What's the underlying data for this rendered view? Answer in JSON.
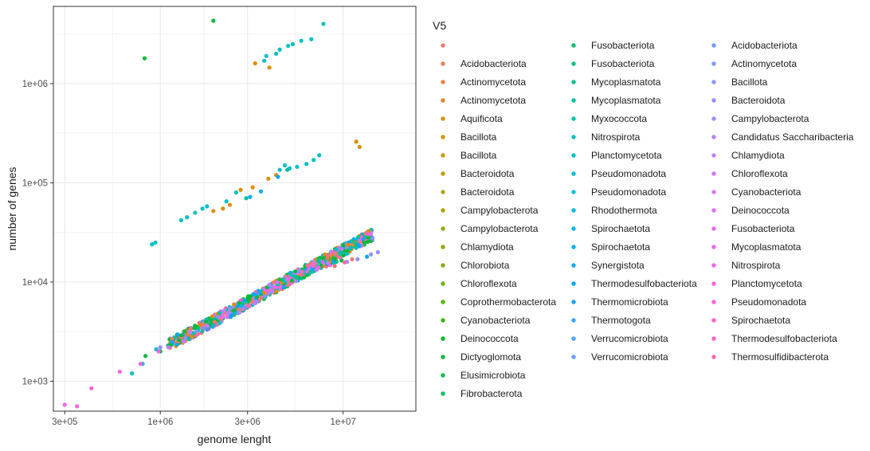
{
  "chart_data": {
    "type": "scatter",
    "xlabel": "genome lenght",
    "ylabel": "number of genes",
    "x_scale": "log10",
    "y_scale": "log10",
    "xlim": [
      260000,
      25000000
    ],
    "ylim": [
      500,
      6000000
    ],
    "x_ticks": [
      {
        "value": 300000,
        "label": "3e+05"
      },
      {
        "value": 1000000,
        "label": "1e+06"
      },
      {
        "value": 3000000,
        "label": "3e+06"
      },
      {
        "value": 10000000,
        "label": "1e+07"
      }
    ],
    "y_ticks": [
      {
        "value": 1000,
        "label": "1e+03"
      },
      {
        "value": 10000,
        "label": "1e+04"
      },
      {
        "value": 100000,
        "label": "1e+05"
      },
      {
        "value": 1000000,
        "label": "1e+06"
      }
    ],
    "grid": true,
    "legend_title": "V5",
    "legend_position": "right",
    "legend_entries": [
      {
        "label": "",
        "color": "#F8766D"
      },
      {
        "label": "Acidobacteriota",
        "color": "#F47A5A"
      },
      {
        "label": "Actinomycetota",
        "color": "#EE8044"
      },
      {
        "label": "Actinomycetota",
        "color": "#E6862A"
      },
      {
        "label": "Aquificota",
        "color": "#DD8D00"
      },
      {
        "label": "Bacillota",
        "color": "#D49200"
      },
      {
        "label": "Bacillota",
        "color": "#C99800"
      },
      {
        "label": "Bacteroidota",
        "color": "#BE9C00"
      },
      {
        "label": "Bacteroidota",
        "color": "#B3A000"
      },
      {
        "label": "Campylobacterota",
        "color": "#A7A400"
      },
      {
        "label": "Campylobacterota",
        "color": "#9AA800"
      },
      {
        "label": "Chlamydiota",
        "color": "#8CAB00"
      },
      {
        "label": "Chlorobiota",
        "color": "#7DAE00"
      },
      {
        "label": "Chloroflexota",
        "color": "#6BB100"
      },
      {
        "label": "Coprothermobacterota",
        "color": "#55B400"
      },
      {
        "label": "Cyanobacteriota",
        "color": "#39B600"
      },
      {
        "label": "Deinococcota",
        "color": "#00B81F"
      },
      {
        "label": "Dictyoglomota",
        "color": "#00BA38"
      },
      {
        "label": "Elusimicrobiota",
        "color": "#00BB4E"
      },
      {
        "label": "Fibrobacterota",
        "color": "#00BC62"
      },
      {
        "label": "Fusobacteriota",
        "color": "#00BE6C"
      },
      {
        "label": "Fusobacteriota",
        "color": "#00BF7D"
      },
      {
        "label": "Mycoplasmatota",
        "color": "#00C08D"
      },
      {
        "label": "Mycoplasmatota",
        "color": "#00C19C"
      },
      {
        "label": "Myxococcota",
        "color": "#00C1AA"
      },
      {
        "label": "Nitrospirota",
        "color": "#00C0B8"
      },
      {
        "label": "Planctomycetota",
        "color": "#00BFC4"
      },
      {
        "label": "Pseudomonadota",
        "color": "#00BDD0"
      },
      {
        "label": "Pseudomonadota",
        "color": "#00BBDB"
      },
      {
        "label": "Rhodothermota",
        "color": "#00B8E5"
      },
      {
        "label": "Spirochaetota",
        "color": "#00B4EF"
      },
      {
        "label": "Spirochaetota",
        "color": "#00B0F6"
      },
      {
        "label": "Synergistota",
        "color": "#00ABFD"
      },
      {
        "label": "Thermodesulfobacteriota",
        "color": "#00A5FF"
      },
      {
        "label": "Thermomicrobiota",
        "color": "#199FFF"
      },
      {
        "label": "Thermotogota",
        "color": "#35A2FF"
      },
      {
        "label": "Verrucomicrobiota",
        "color": "#4B9FFF"
      },
      {
        "label": "Verrucomicrobiota",
        "color": "#619CFF"
      },
      {
        "label": "Acidobacteriota",
        "color": "#6E9BFF"
      },
      {
        "label": "Actinomycetota",
        "color": "#7E97FF"
      },
      {
        "label": "Bacillota",
        "color": "#8B93FF"
      },
      {
        "label": "Bacteroidota",
        "color": "#9590FF"
      },
      {
        "label": "Campylobacterota",
        "color": "#A58AFF"
      },
      {
        "label": "Candidatus Saccharibacteria",
        "color": "#B385FF"
      },
      {
        "label": "Chlamydiota",
        "color": "#C17FFF"
      },
      {
        "label": "Chloroflexota",
        "color": "#CD79FF"
      },
      {
        "label": "Cyanobacteriota",
        "color": "#D774FD"
      },
      {
        "label": "Deinococcota",
        "color": "#E16EF7"
      },
      {
        "label": "Fusobacteriota",
        "color": "#E96AF0"
      },
      {
        "label": "Mycoplasmatota",
        "color": "#F066E8"
      },
      {
        "label": "Nitrospirota",
        "color": "#F564E3"
      },
      {
        "label": "Planctomycetota",
        "color": "#F962DD"
      },
      {
        "label": "Pseudomonadota",
        "color": "#FC61D5"
      },
      {
        "label": "Spirochaetota",
        "color": "#FE62CB"
      },
      {
        "label": "Thermodesulfobacteriota",
        "color": "#FF64C0"
      },
      {
        "label": "Thermosulfidibacterota",
        "color": "#FF67B4"
      },
      {
        "label": "Thermotogota",
        "color": "#FF6AA7"
      },
      {
        "label": "Verrucomicrobiota",
        "color": "#FF6C91"
      }
    ],
    "series": [
      {
        "color": "#00BFC4",
        "points": [
          [
            7800000,
            4000000
          ],
          [
            6700000,
            2800000
          ],
          [
            5900000,
            2700000
          ],
          [
            5300000,
            2500000
          ],
          [
            5000000,
            2400000
          ],
          [
            4500000,
            2200000
          ],
          [
            4300000,
            2000000
          ],
          [
            3700000,
            1700000
          ],
          [
            3800000,
            1900000
          ],
          [
            7400000,
            190000
          ],
          [
            6900000,
            170000
          ],
          [
            6300000,
            155000
          ],
          [
            5600000,
            145000
          ],
          [
            5100000,
            140000
          ],
          [
            4800000,
            150000
          ],
          [
            4500000,
            135000
          ],
          [
            1700000,
            55000
          ],
          [
            1550000,
            50000
          ],
          [
            1800000,
            58000
          ],
          [
            2300000,
            65000
          ],
          [
            2600000,
            80000
          ],
          [
            900000,
            24000
          ],
          [
            940000,
            25000
          ],
          [
            1300000,
            42000
          ],
          [
            1400000,
            45000
          ],
          [
            950000,
            2100
          ],
          [
            800000,
            1500
          ],
          [
            700000,
            1200
          ],
          [
            1250000,
            2500
          ],
          [
            1500000,
            3000
          ],
          [
            1850000,
            3600
          ],
          [
            2500000,
            5200
          ],
          [
            3200000,
            6500
          ],
          [
            4100000,
            8000
          ],
          [
            5400000,
            11000
          ],
          [
            6500000,
            13000
          ],
          [
            7800000,
            14500
          ],
          [
            8900000,
            15500
          ]
        ]
      },
      {
        "color": "#DD8D00",
        "points": [
          [
            3300000,
            1600000
          ],
          [
            3950000,
            1450000
          ],
          [
            11800000,
            260000
          ],
          [
            12300000,
            230000
          ],
          [
            3200000,
            90000
          ],
          [
            3900000,
            110000
          ],
          [
            4300000,
            120000
          ],
          [
            2400000,
            60000
          ],
          [
            2200000,
            55000
          ],
          [
            1950000,
            52000
          ],
          [
            2750000,
            85000
          ],
          [
            4200000,
            8500
          ],
          [
            3700000,
            7500
          ]
        ]
      },
      {
        "color": "#00BA38",
        "points": [
          [
            820000,
            1800000
          ],
          [
            1950000,
            4300000
          ]
        ]
      },
      {
        "color": "#00BA38",
        "points": [
          [
            830000,
            1800
          ],
          [
            1000000,
            2000
          ],
          [
            1600000,
            3200
          ],
          [
            2200000,
            4300
          ],
          [
            3000000,
            6000
          ],
          [
            4700000,
            9500
          ],
          [
            6100000,
            12000
          ],
          [
            9800000,
            16500
          ]
        ]
      },
      {
        "color": "#00A5FF",
        "points": [
          [
            3550000,
            82000
          ],
          [
            4400000,
            115000
          ],
          [
            3100000,
            72000
          ],
          [
            2700000,
            5000
          ],
          [
            3500000,
            6800
          ],
          [
            5200000,
            10500
          ],
          [
            7100000,
            13500
          ],
          [
            13500000,
            18000
          ]
        ]
      },
      {
        "color": "#00C19C",
        "points": [
          [
            4950000,
            135000
          ],
          [
            2950000,
            70000
          ],
          [
            2050000,
            4100
          ],
          [
            2800000,
            5600
          ],
          [
            3900000,
            7700
          ],
          [
            6000000,
            12400
          ],
          [
            9200000,
            16000
          ]
        ]
      },
      {
        "color": "#9590FF",
        "points": [
          [
            15500000,
            20000
          ],
          [
            14200000,
            19000
          ],
          [
            12000000,
            17000
          ],
          [
            10500000,
            16000
          ],
          [
            8300000,
            15000
          ],
          [
            6800000,
            13200
          ],
          [
            5800000,
            11700
          ],
          [
            4900000,
            10000
          ],
          [
            4000000,
            8600
          ],
          [
            3400000,
            7300
          ],
          [
            2900000,
            6100
          ],
          [
            2400000,
            5200
          ],
          [
            2000000,
            4100
          ],
          [
            1700000,
            3500
          ],
          [
            1400000,
            2900
          ],
          [
            1150000,
            2500
          ],
          [
            1000000,
            2200
          ]
        ]
      },
      {
        "color": "#C17FFF",
        "points": [
          [
            1250000,
            2600
          ],
          [
            1500000,
            3100
          ],
          [
            2100000,
            4400
          ],
          [
            2600000,
            5400
          ],
          [
            3100000,
            6400
          ],
          [
            3600000,
            7100
          ],
          [
            4400000,
            9100
          ],
          [
            5600000,
            11300
          ],
          [
            7300000,
            14000
          ]
        ]
      },
      {
        "color": "#F564E3",
        "points": [
          [
            300000,
            580
          ],
          [
            350000,
            560
          ],
          [
            420000,
            850
          ],
          [
            600000,
            1250
          ],
          [
            780000,
            1500
          ],
          [
            980000,
            2000
          ],
          [
            1350000,
            2800
          ],
          [
            1750000,
            3600
          ],
          [
            2300000,
            4800
          ],
          [
            2900000,
            5800
          ],
          [
            3600000,
            7300
          ],
          [
            4600000,
            9200
          ],
          [
            5900000,
            11400
          ],
          [
            7000000,
            13000
          ],
          [
            8500000,
            14800
          ]
        ]
      },
      {
        "color": "#FF6AA7",
        "points": [
          [
            1100000,
            2300
          ],
          [
            1600000,
            3300
          ],
          [
            2500000,
            5100
          ],
          [
            3300000,
            6900
          ],
          [
            4300000,
            8600
          ],
          [
            5500000,
            10800
          ],
          [
            6700000,
            12700
          ],
          [
            8100000,
            14400
          ],
          [
            10200000,
            15800
          ]
        ]
      },
      {
        "color": "#F8766D",
        "points": [
          [
            9000000,
            14500
          ],
          [
            11200000,
            17000
          ],
          [
            4800000,
            9600
          ],
          [
            2700000,
            5500
          ],
          [
            1900000,
            3900
          ]
        ]
      }
    ]
  }
}
